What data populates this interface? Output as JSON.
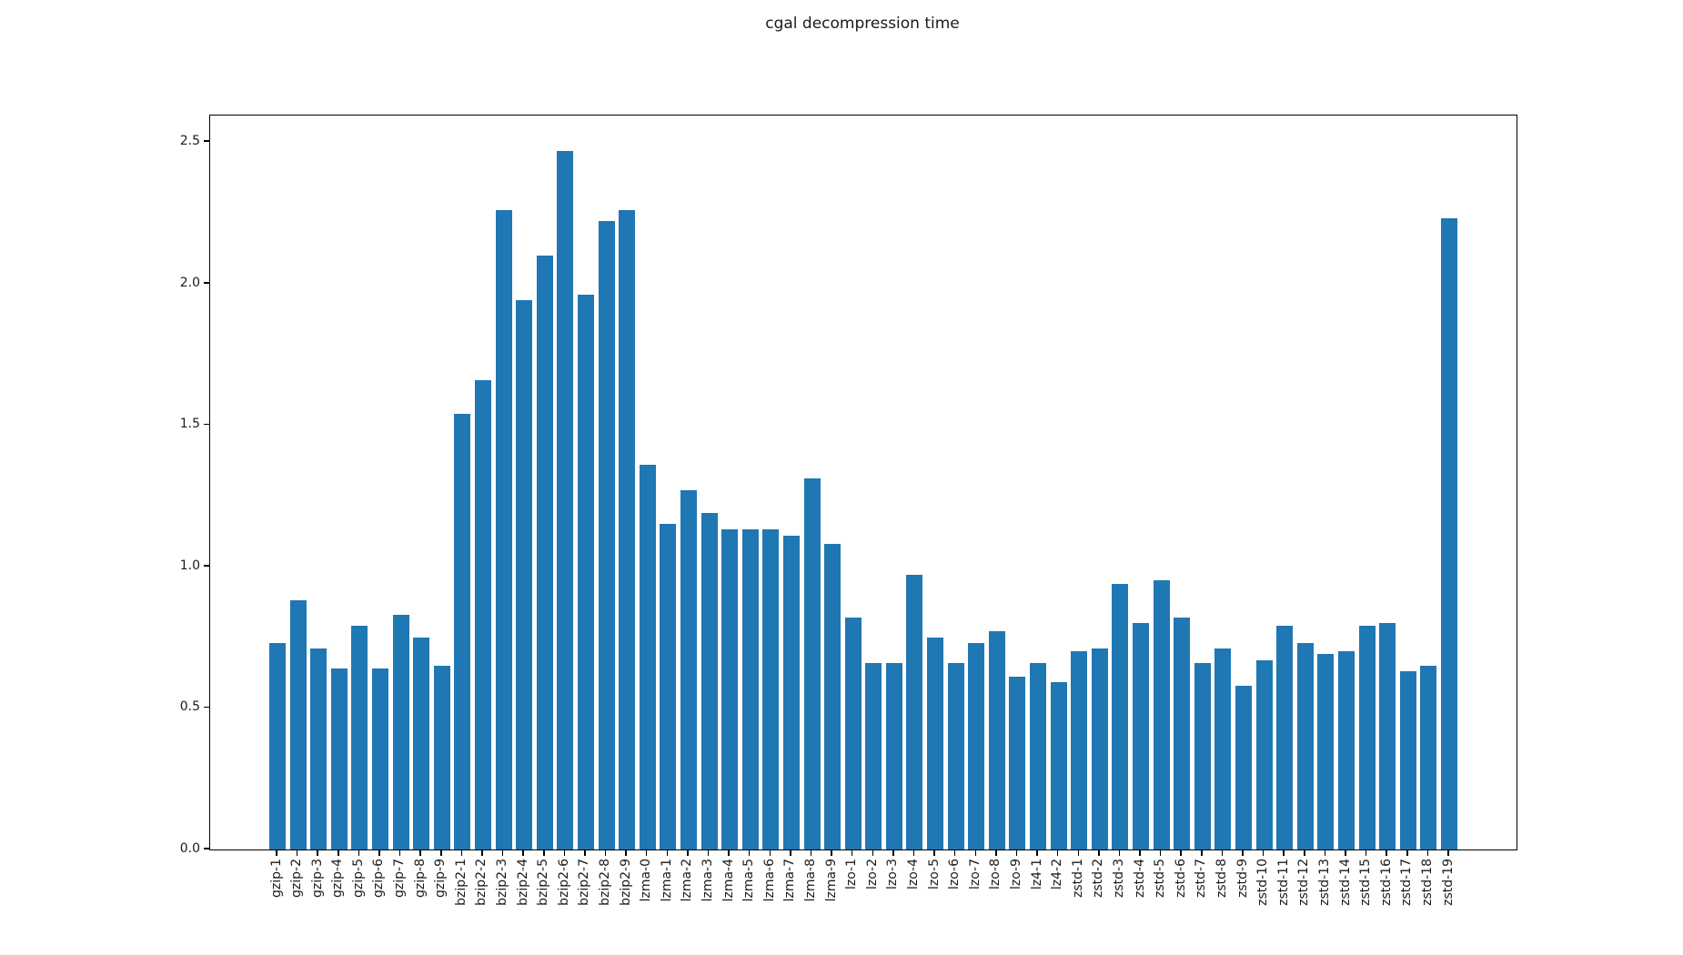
{
  "figure": {
    "background": "#ffffff"
  },
  "chart_data": {
    "type": "bar",
    "title": "cgal decompression time",
    "xlabel": "",
    "ylabel": "",
    "bar_color": "#1f77b4",
    "axis_color": "#000000",
    "text_color": "#1a1a1a",
    "grid": false,
    "legend": null,
    "ylim": [
      0,
      2.59
    ],
    "yticks": [
      "0.0",
      "0.5",
      "1.0",
      "1.5",
      "2.0",
      "2.5"
    ],
    "categories": [
      "gzip-1",
      "gzip-2",
      "gzip-3",
      "gzip-4",
      "gzip-5",
      "gzip-6",
      "gzip-7",
      "gzip-8",
      "gzip-9",
      "bzip2-1",
      "bzip2-2",
      "bzip2-3",
      "bzip2-4",
      "bzip2-5",
      "bzip2-6",
      "bzip2-7",
      "bzip2-8",
      "bzip2-9",
      "lzma-0",
      "lzma-1",
      "lzma-2",
      "lzma-3",
      "lzma-4",
      "lzma-5",
      "lzma-6",
      "lzma-7",
      "lzma-8",
      "lzma-9",
      "lzo-1",
      "lzo-2",
      "lzo-3",
      "lzo-4",
      "lzo-5",
      "lzo-6",
      "lzo-7",
      "lzo-8",
      "lzo-9",
      "lz4-1",
      "lz4-2",
      "zstd-1",
      "zstd-2",
      "zstd-3",
      "zstd-4",
      "zstd-5",
      "zstd-6",
      "zstd-7",
      "zstd-8",
      "zstd-9",
      "zstd-10",
      "zstd-11",
      "zstd-12",
      "zstd-13",
      "zstd-14",
      "zstd-15",
      "zstd-16",
      "zstd-17",
      "zstd-18",
      "zstd-19"
    ],
    "values": [
      0.73,
      0.88,
      0.71,
      0.64,
      0.79,
      0.64,
      0.83,
      0.75,
      0.65,
      1.54,
      1.66,
      2.26,
      1.94,
      2.1,
      2.47,
      1.96,
      2.22,
      2.26,
      1.36,
      1.15,
      1.27,
      1.19,
      1.13,
      1.13,
      1.13,
      1.11,
      1.31,
      1.08,
      0.82,
      0.66,
      0.66,
      0.97,
      0.75,
      0.66,
      0.73,
      0.77,
      0.61,
      0.66,
      0.59,
      0.7,
      0.71,
      0.94,
      0.8,
      0.95,
      0.82,
      0.66,
      0.71,
      0.58,
      0.67,
      0.79,
      0.73,
      0.69,
      0.7,
      0.79,
      0.8,
      0.63,
      0.65,
      2.23
    ]
  }
}
